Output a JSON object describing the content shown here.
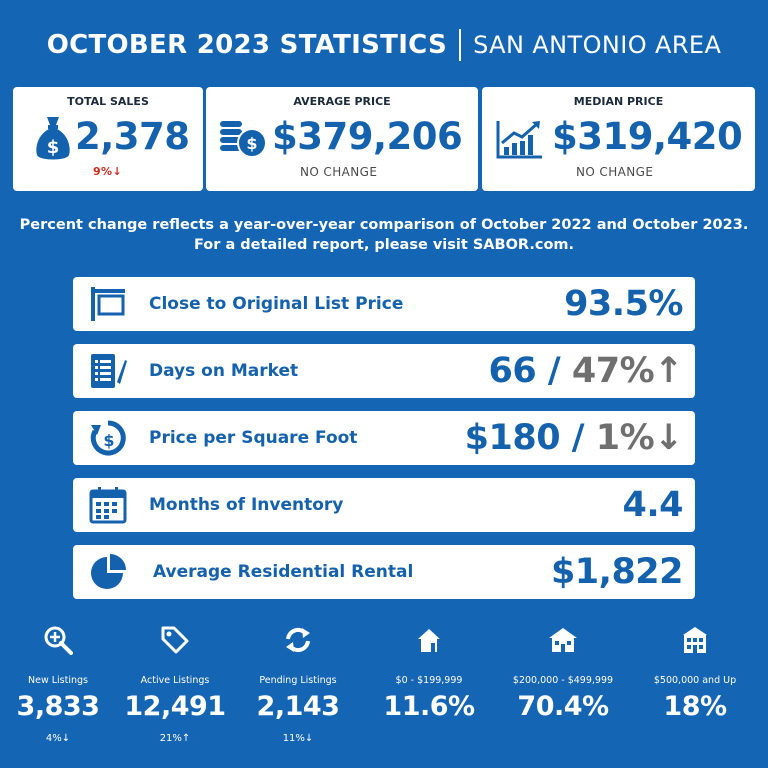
{
  "header": {
    "title": "OCTOBER 2023 STATISTICS",
    "subtitle": "SAN ANTONIO AREA"
  },
  "top_cards": {
    "total_sales": {
      "label": "TOTAL SALES",
      "value": "2,378",
      "note": "9%↓",
      "icon": "money-bag-icon"
    },
    "average_price": {
      "label": "AVERAGE PRICE",
      "value": "$379,206",
      "note": "NO CHANGE",
      "icon": "coins-icon"
    },
    "median_price": {
      "label": "MEDIAN PRICE",
      "value": "$319,420",
      "note": "NO CHANGE",
      "icon": "chart-up-icon"
    }
  },
  "info": {
    "line1": "Percent change reflects a year-over-year comparison of October 2022 and October 2023.",
    "line2": "For a detailed report, please visit SABOR.com."
  },
  "rows": [
    {
      "label": "Close to Original List Price",
      "value": "93.5%",
      "change": "",
      "icon": "sign-post-icon"
    },
    {
      "label": "Days on Market",
      "value": "66",
      "change": "47%↑",
      "icon": "document-pen-icon"
    },
    {
      "label": "Price per Square Foot",
      "value": "$180",
      "change": "1%↓",
      "icon": "dollar-refresh-icon"
    },
    {
      "label": "Months of Inventory",
      "value": "4.4",
      "change": "",
      "icon": "calendar-icon"
    },
    {
      "label": "Average Residential Rental",
      "value": "$1,822",
      "change": "",
      "icon": "pie-chart-icon"
    }
  ],
  "row_separator": "/",
  "stats": [
    {
      "label": "New Listings",
      "value": "3,833",
      "change": "4%↓",
      "icon": "magnify-plus-icon"
    },
    {
      "label": "Active Listings",
      "value": "12,491",
      "change": "21%↑",
      "icon": "tag-icon"
    },
    {
      "label": "Pending Listings",
      "value": "2,143",
      "change": "11%↓",
      "icon": "refresh-arrows-icon"
    },
    {
      "label": "$0 - $199,999",
      "value": "11.6%",
      "change": "",
      "icon": "small-house-icon"
    },
    {
      "label": "$200,000 - $499,999",
      "value": "70.4%",
      "change": "",
      "icon": "medium-house-icon"
    },
    {
      "label": "$500,000 and Up",
      "value": "18%",
      "change": "",
      "icon": "large-house-icon"
    }
  ],
  "colors": {
    "background": "#1565b5",
    "accent_blue": "#1461ad",
    "down_red": "#d32a20",
    "change_gray": "#6f6f6f"
  }
}
